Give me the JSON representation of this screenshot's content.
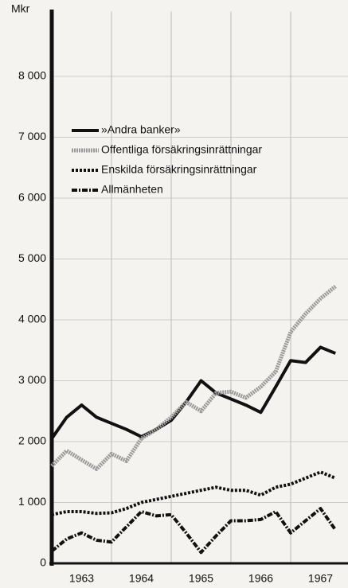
{
  "chart_data": {
    "type": "line",
    "y_label": "Mkr",
    "xlim": [
      1963,
      1968
    ],
    "xticks": [
      {
        "value": 1963.5,
        "label": "1963"
      },
      {
        "value": 1964.5,
        "label": "1964"
      },
      {
        "value": 1965.5,
        "label": "1965"
      },
      {
        "value": 1966.5,
        "label": "1966"
      },
      {
        "value": 1967.5,
        "label": "1967"
      }
    ],
    "xgrid": [
      1964,
      1965,
      1966,
      1967,
      1968
    ],
    "ylim": [
      0,
      9000
    ],
    "yticks": [
      0,
      {
        "value": 1000,
        "label": "1 000"
      },
      {
        "value": 2000,
        "label": "2 000"
      },
      {
        "value": 3000,
        "label": "3 000"
      },
      {
        "value": 4000,
        "label": "4 000"
      },
      {
        "value": 5000,
        "label": "5 000"
      },
      {
        "value": 6000,
        "label": "6 000"
      },
      {
        "value": 7000,
        "label": "7 000"
      },
      {
        "value": 8000,
        "label": "8 000"
      }
    ],
    "grid": true,
    "legend": "upper left",
    "x": [
      1963,
      1963.25,
      1963.5,
      1963.75,
      1964,
      1964.25,
      1964.5,
      1964.75,
      1965,
      1965.25,
      1965.5,
      1965.75,
      1966,
      1966.25,
      1966.5,
      1966.75,
      1967,
      1967.25,
      1967.5,
      1967.75
    ],
    "series": [
      {
        "name": "»Andra banker»",
        "color": "#111111",
        "style": "solid",
        "values": [
          2050,
          2400,
          2600,
          2400,
          2300,
          2200,
          2080,
          2200,
          2350,
          2650,
          3000,
          2800,
          2700,
          2600,
          2480,
          2900,
          3330,
          3300,
          3550,
          3450
        ]
      },
      {
        "name": "Offentliga försäkringsinrättningar",
        "color": "#9a9a9a",
        "style": "hatched",
        "values": [
          1600,
          1850,
          1700,
          1550,
          1800,
          1680,
          2050,
          2200,
          2400,
          2650,
          2500,
          2800,
          2820,
          2720,
          2900,
          3150,
          3800,
          4100,
          4350,
          4550
        ]
      },
      {
        "name": "Enskilda försäkringsinrättningar",
        "color": "#111111",
        "style": "dotted",
        "values": [
          800,
          850,
          850,
          820,
          830,
          900,
          1000,
          1050,
          1100,
          1150,
          1200,
          1250,
          1200,
          1200,
          1120,
          1250,
          1300,
          1400,
          1500,
          1400
        ]
      },
      {
        "name": "Allmänheten",
        "color": "#111111",
        "style": "dashdot",
        "values": [
          200,
          400,
          500,
          380,
          350,
          600,
          850,
          780,
          800,
          500,
          180,
          450,
          700,
          700,
          720,
          850,
          500,
          700,
          900,
          550
        ]
      }
    ]
  }
}
